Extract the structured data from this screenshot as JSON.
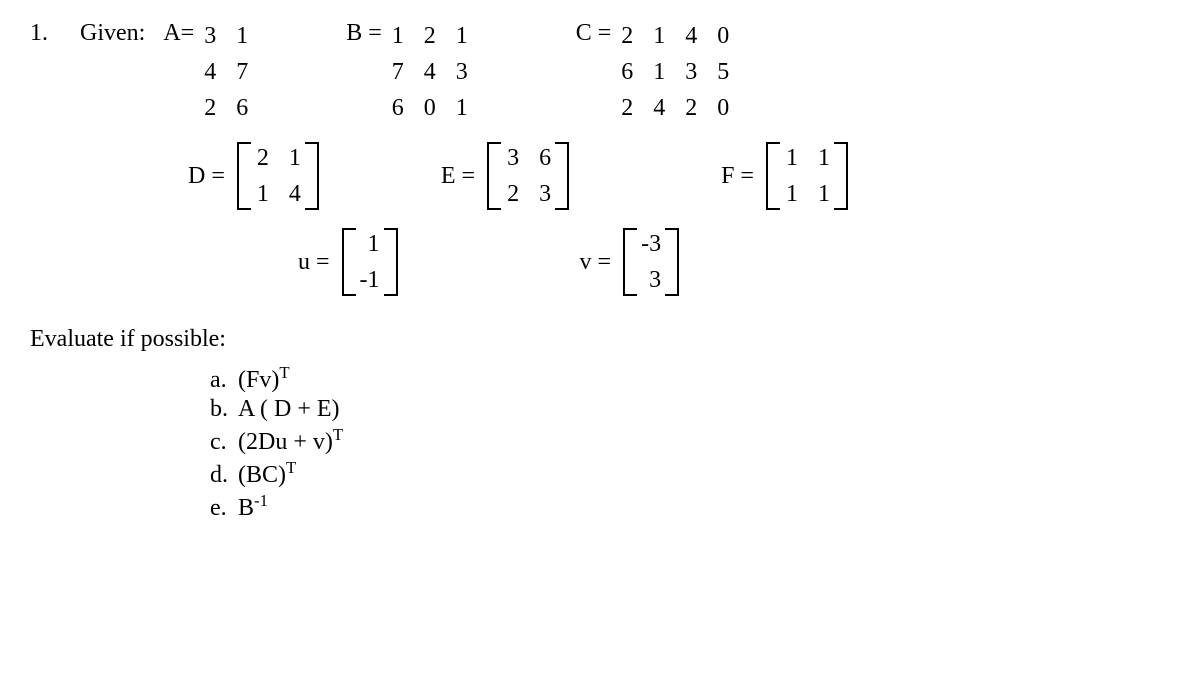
{
  "problem_number": "1.",
  "given_label": "Given:",
  "matrices": {
    "A": {
      "label": "A=",
      "rows": 3,
      "cols": 2,
      "data": [
        [
          "3",
          "1"
        ],
        [
          "4",
          "7"
        ],
        [
          "2",
          "6"
        ]
      ],
      "brackets": false
    },
    "B": {
      "label": "B =",
      "rows": 3,
      "cols": 3,
      "data": [
        [
          "1",
          "2",
          "1"
        ],
        [
          "7",
          "4",
          "3"
        ],
        [
          "6",
          "0",
          "1"
        ]
      ],
      "brackets": false
    },
    "C": {
      "label": "C =",
      "rows": 3,
      "cols": 4,
      "data": [
        [
          "2",
          "1",
          "4",
          "0"
        ],
        [
          "6",
          "1",
          "3",
          "5"
        ],
        [
          "2",
          "4",
          "2",
          "0"
        ]
      ],
      "brackets": false
    },
    "D": {
      "label": "D =",
      "rows": 2,
      "cols": 2,
      "data": [
        [
          "2",
          "1"
        ],
        [
          "1",
          "4"
        ]
      ],
      "brackets": true
    },
    "E": {
      "label": "E =",
      "rows": 2,
      "cols": 2,
      "data": [
        [
          "3",
          "6"
        ],
        [
          "2",
          "3"
        ]
      ],
      "brackets": true
    },
    "F": {
      "label": "F =",
      "rows": 2,
      "cols": 2,
      "data": [
        [
          "1",
          "1"
        ],
        [
          "1",
          "1"
        ]
      ],
      "brackets": true
    },
    "u": {
      "label": "u =",
      "rows": 2,
      "cols": 1,
      "data": [
        [
          "1"
        ],
        [
          "-1"
        ]
      ],
      "brackets": true
    },
    "v": {
      "label": "v =",
      "rows": 2,
      "cols": 1,
      "data": [
        [
          "-3"
        ],
        [
          "3"
        ]
      ],
      "brackets": true
    }
  },
  "evaluate_label": "Evaluate if possible:",
  "subproblems": [
    {
      "letter": "a.",
      "expr_parts": [
        "(Fv)",
        "T"
      ]
    },
    {
      "letter": "b.",
      "expr_plain": "A ( D + E)"
    },
    {
      "letter": "c.",
      "expr_parts": [
        "(2Du + v)",
        "T"
      ]
    },
    {
      "letter": "d.",
      "expr_parts": [
        "(BC)",
        "T"
      ]
    },
    {
      "letter": "e.",
      "expr_parts": [
        "B",
        "-1"
      ]
    }
  ],
  "style": {
    "font_family": "Times New Roman",
    "font_size_pt": 18,
    "text_color": "#000000",
    "background_color": "#ffffff"
  }
}
